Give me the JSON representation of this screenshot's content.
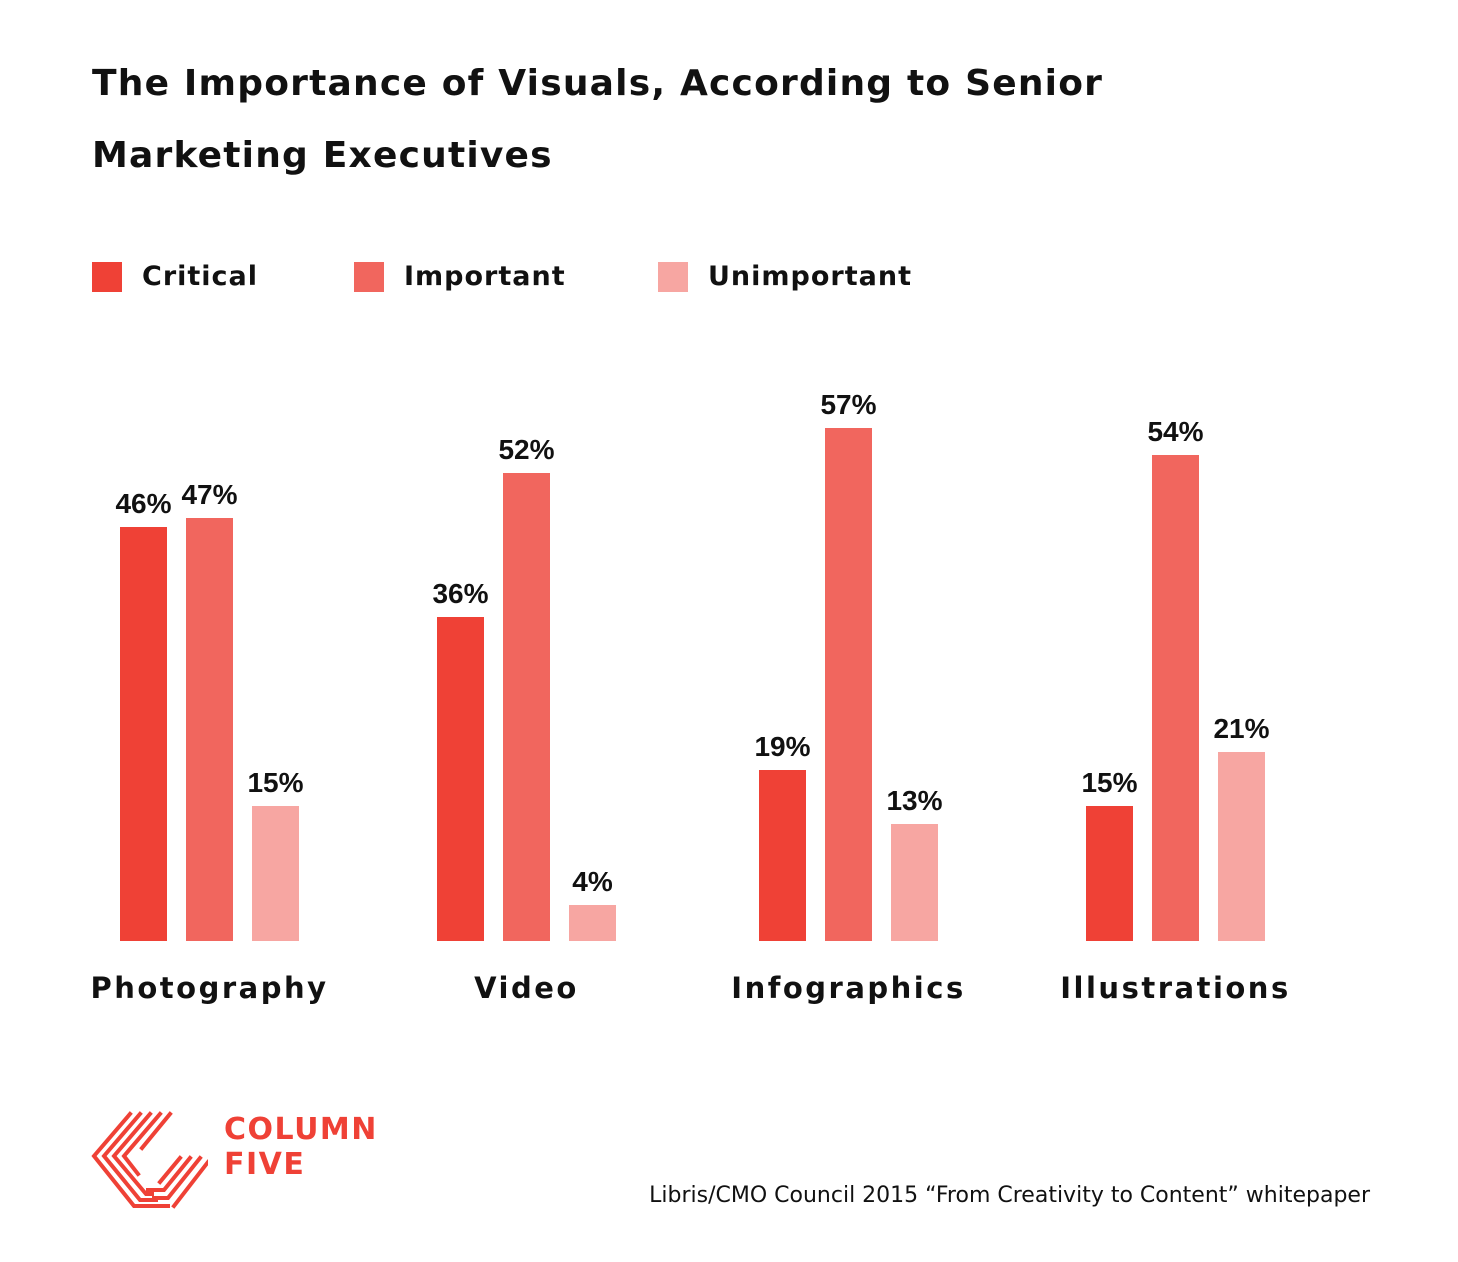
{
  "title": "The Importance of Visuals, According to Senior Marketing Executives",
  "colors": {
    "critical": "#ef4136",
    "important": "#f1665e",
    "unimportant": "#f7a6a2",
    "brand": "#ef4136",
    "text": "#111111"
  },
  "legend": [
    {
      "label": "Critical",
      "color": "#ef4136"
    },
    {
      "label": "Important",
      "color": "#f1665e"
    },
    {
      "label": "Unimportant",
      "color": "#f7a6a2"
    }
  ],
  "chart_data": {
    "type": "bar",
    "title": "The Importance of Visuals, According to Senior Marketing Executives",
    "xlabel": "",
    "ylabel": "",
    "ylim": [
      0,
      60
    ],
    "grid": false,
    "legend_position": "top-left",
    "categories": [
      "Photography",
      "Video",
      "Infographics",
      "Illustrations"
    ],
    "series": [
      {
        "name": "Critical",
        "color": "#ef4136",
        "values": [
          46,
          36,
          19,
          15
        ],
        "labels": [
          "46%",
          "36%",
          "19%",
          "15%"
        ]
      },
      {
        "name": "Important",
        "color": "#f1665e",
        "values": [
          47,
          52,
          57,
          54
        ],
        "labels": [
          "47%",
          "52%",
          "57%",
          "54%"
        ]
      },
      {
        "name": "Unimportant",
        "color": "#f7a6a2",
        "values": [
          15,
          4,
          13,
          21
        ],
        "labels": [
          "15%",
          "4%",
          "13%",
          "21%"
        ]
      }
    ]
  },
  "brand": {
    "line1": "COLUMN",
    "line2": "FIVE",
    "logo_icon": "column-five-chevron-logo"
  },
  "source": "Libris/CMO Council 2015 “From Creativity to Content” whitepaper"
}
